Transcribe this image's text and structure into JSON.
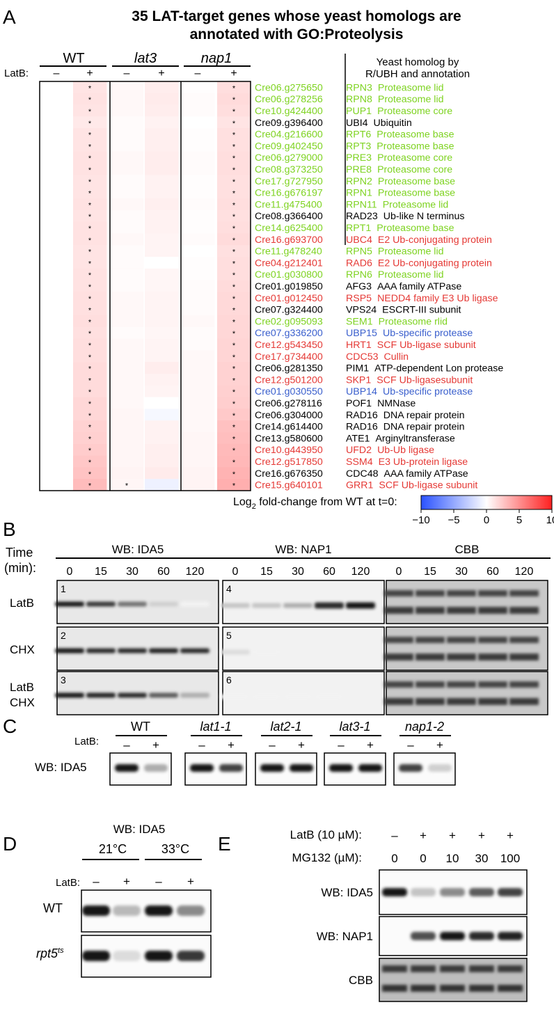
{
  "panelA": {
    "letter": "A",
    "title_line1": "35 LAT-target genes whose yeast homologs are",
    "title_line2": "annotated with GO:Proteolysis",
    "strains": [
      "WT",
      "lat3",
      "nap1"
    ],
    "latb_label": "LatB:",
    "minus": "–",
    "plus": "+",
    "legend_header_line1": "Yeast homolog by",
    "legend_header_line2": "R/UBH and annotation",
    "colors": {
      "proteasome": "#7ed321",
      "ubiquitin_ligase": "#e53935",
      "protease": "#3a5fcd",
      "other": "#000000"
    },
    "genes": [
      {
        "id": "Cre06.g275650",
        "homolog": "RPN3",
        "annotation": "Proteasome lid",
        "color": "#7ed321",
        "vals": [
          0,
          1.2,
          0.3,
          0.8,
          0.1,
          1.5
        ]
      },
      {
        "id": "Cre06.g278256",
        "homolog": "RPN8",
        "annotation": "Proteasome lid",
        "color": "#7ed321",
        "vals": [
          0,
          1.3,
          0.3,
          0.9,
          0.2,
          1.6
        ]
      },
      {
        "id": "Cre10.g424400",
        "homolog": "PUP1",
        "annotation": "Proteasome core",
        "color": "#7ed321",
        "vals": [
          0,
          1.2,
          0.3,
          0.8,
          0.2,
          1.5
        ]
      },
      {
        "id": "Cre09.g396400",
        "homolog": "UBI4",
        "annotation": "Ubiquitin",
        "color": "#000000",
        "vals": [
          0,
          1.0,
          0.2,
          0.6,
          0.0,
          1.2
        ]
      },
      {
        "id": "Cre04.g216600",
        "homolog": "RPT6",
        "annotation": "Proteasome base",
        "color": "#7ed321",
        "vals": [
          0,
          1.2,
          0.2,
          0.7,
          0.1,
          1.4
        ]
      },
      {
        "id": "Cre09.g402450",
        "homolog": "RPT3",
        "annotation": "Proteasome base",
        "color": "#7ed321",
        "vals": [
          0,
          1.2,
          0.2,
          0.7,
          0.1,
          1.4
        ]
      },
      {
        "id": "Cre06.g279000",
        "homolog": "PRE3",
        "annotation": "Proteasome core",
        "color": "#7ed321",
        "vals": [
          0,
          1.3,
          0.3,
          0.8,
          0.2,
          1.5
        ]
      },
      {
        "id": "Cre08.g373250",
        "homolog": "PRE8",
        "annotation": "Proteasome core",
        "color": "#7ed321",
        "vals": [
          0,
          1.3,
          0.3,
          0.8,
          0.2,
          1.5
        ]
      },
      {
        "id": "Cre17.g727950",
        "homolog": "RPN2",
        "annotation": "Proteasome base",
        "color": "#7ed321",
        "vals": [
          0,
          1.2,
          0.2,
          0.6,
          0.1,
          1.4
        ]
      },
      {
        "id": "Cre16.g676197",
        "homolog": "RPN1",
        "annotation": "Proteasome base",
        "color": "#7ed321",
        "vals": [
          0,
          1.2,
          0.2,
          0.6,
          0.1,
          1.4
        ]
      },
      {
        "id": "Cre11.g475400",
        "homolog": "RPN11",
        "annotation": "Proteasome lid",
        "color": "#7ed321",
        "vals": [
          0,
          1.3,
          0.3,
          0.7,
          0.2,
          1.5
        ]
      },
      {
        "id": "Cre08.g366400",
        "homolog": "RAD23",
        "annotation": "Ub-like N terminus",
        "color": "#000000",
        "vals": [
          0,
          1.2,
          0.2,
          0.6,
          0.1,
          1.4
        ]
      },
      {
        "id": "Cre14.g625400",
        "homolog": "RPT1",
        "annotation": "Proteasome base",
        "color": "#7ed321",
        "vals": [
          0,
          1.3,
          0.2,
          0.6,
          0.1,
          1.5
        ]
      },
      {
        "id": "Cre16.g693700",
        "homolog": "UBC4",
        "annotation": "E2 Ub-conjugating protein",
        "color": "#e53935",
        "vals": [
          0,
          1.3,
          0.3,
          0.5,
          0.2,
          1.6
        ]
      },
      {
        "id": "Cre11.g478240",
        "homolog": "RPN5",
        "annotation": "Proteasome lid",
        "color": "#7ed321",
        "vals": [
          0,
          1.2,
          0.2,
          0.5,
          0.0,
          1.4
        ]
      },
      {
        "id": "Cre04.g212401",
        "homolog": "RAD6",
        "annotation": "E2 Ub-conjugating protein",
        "color": "#e53935",
        "vals": [
          0,
          1.2,
          0.2,
          0.0,
          0.1,
          1.5
        ]
      },
      {
        "id": "Cre01.g030800",
        "homolog": "RPN6",
        "annotation": "Proteasome lid",
        "color": "#7ed321",
        "vals": [
          0,
          1.3,
          0.2,
          0.4,
          0.1,
          1.5
        ]
      },
      {
        "id": "Cre01.g019850",
        "homolog": "AFG3",
        "annotation": "AAA family ATPase",
        "color": "#000000",
        "vals": [
          0,
          1.3,
          0.2,
          0.4,
          0.2,
          1.6
        ]
      },
      {
        "id": "Cre01.g012450",
        "homolog": "RSP5",
        "annotation": "NEDD4 family E3 Ub ligase",
        "color": "#e53935",
        "vals": [
          0,
          1.4,
          0.3,
          0.5,
          0.2,
          1.7
        ]
      },
      {
        "id": "Cre07.g324400",
        "homolog": "VPS24",
        "annotation": "ESCRT-III subunit",
        "color": "#000000",
        "vals": [
          0,
          1.4,
          0.3,
          0.5,
          0.2,
          1.7
        ]
      },
      {
        "id": "Cre02.g095093",
        "homolog": "SEM1",
        "annotation": "Proteasome rlid",
        "color": "#7ed321",
        "vals": [
          0,
          1.5,
          0.3,
          0.5,
          0.3,
          1.8
        ]
      },
      {
        "id": "Cre07.g336200",
        "homolog": "UBP15",
        "annotation": "Ub-specific protease",
        "color": "#3a5fcd",
        "vals": [
          0,
          1.4,
          0.2,
          0.4,
          0.2,
          1.8
        ]
      },
      {
        "id": "Cre12.g543450",
        "homolog": "HRT1",
        "annotation": "SCF Ub-ligase subunit",
        "color": "#e53935",
        "vals": [
          0,
          1.5,
          0.3,
          0.5,
          0.2,
          1.9
        ]
      },
      {
        "id": "Cre17.g734400",
        "homolog": "CDC53",
        "annotation": "Cullin",
        "color": "#e53935",
        "vals": [
          0,
          1.5,
          0.3,
          0.5,
          0.3,
          1.9
        ]
      },
      {
        "id": "Cre06.g281350",
        "homolog": "PIM1",
        "annotation": "ATP-dependent Lon protease",
        "color": "#000000",
        "vals": [
          0,
          1.6,
          0.3,
          0.8,
          0.3,
          2.0
        ]
      },
      {
        "id": "Cre12.g501200",
        "homolog": "SKP1",
        "annotation": "SCF Ub-ligasesubunit",
        "color": "#e53935",
        "vals": [
          0,
          1.6,
          0.3,
          0.6,
          0.3,
          2.0
        ]
      },
      {
        "id": "Cre01.g030550",
        "homolog": "UBP14",
        "annotation": "Ub-specific protease",
        "color": "#3a5fcd",
        "vals": [
          0,
          1.6,
          0.3,
          0.5,
          0.3,
          2.1
        ]
      },
      {
        "id": "Cre06.g278116",
        "homolog": "POF1",
        "annotation": "NMNase",
        "color": "#000000",
        "vals": [
          0,
          1.8,
          0.3,
          0.0,
          0.3,
          2.2
        ]
      },
      {
        "id": "Cre06.g304000",
        "homolog": "RAD16",
        "annotation": "DNA repair protein",
        "color": "#000000",
        "vals": [
          0,
          1.8,
          0.4,
          -0.4,
          0.3,
          2.4
        ]
      },
      {
        "id": "Cre14.g614400",
        "homolog": "RAD16",
        "annotation": "DNA repair protein",
        "color": "#000000",
        "vals": [
          0,
          2.0,
          0.4,
          0.6,
          0.3,
          2.8
        ]
      },
      {
        "id": "Cre13.g580600",
        "homolog": "ATE1",
        "annotation": "Arginyltransferase",
        "color": "#000000",
        "vals": [
          0,
          2.1,
          0.4,
          0.6,
          0.4,
          2.9
        ]
      },
      {
        "id": "Cre10.g443950",
        "homolog": "UFD2",
        "annotation": "Ub-Ub ligase",
        "color": "#e53935",
        "vals": [
          0,
          2.3,
          0.4,
          0.7,
          0.4,
          3.1
        ]
      },
      {
        "id": "Cre12.g517850",
        "homolog": "SSM4",
        "annotation": "E3 Ub-protein ligase",
        "color": "#e53935",
        "vals": [
          0,
          2.5,
          0.4,
          0.7,
          0.4,
          3.2
        ]
      },
      {
        "id": "Cre16.g676350",
        "homolog": "CDC48",
        "annotation": "AAA family ATPase",
        "color": "#000000",
        "vals": [
          0,
          2.7,
          0.5,
          0.9,
          0.5,
          3.4
        ]
      },
      {
        "id": "Cre15.g640101",
        "homolog": "GRR1",
        "annotation": "SCF Ub-ligase subunit",
        "color": "#e53935",
        "vals": [
          0,
          3.0,
          0.4,
          -0.8,
          0.5,
          3.6
        ]
      }
    ],
    "asterisk": "*",
    "colorbar": {
      "label_main": "Log",
      "label_sub": "2",
      "label_rest": " fold-change from WT at t=0:",
      "ticks": [
        "−10",
        "−5",
        "0",
        "5",
        "10"
      ],
      "min": -10,
      "max": 10
    }
  },
  "panelB": {
    "letter": "B",
    "time_label_line1": "Time",
    "time_label_line2": "(min):",
    "groups": [
      "WB: IDA5",
      "WB: NAP1",
      "CBB"
    ],
    "timepoints": [
      "0",
      "15",
      "30",
      "60",
      "120"
    ],
    "rows": [
      {
        "label_line1": "LatB",
        "label_line2": ""
      },
      {
        "label_line1": "CHX",
        "label_line2": ""
      },
      {
        "label_line1": "LatB",
        "label_line2": "CHX"
      }
    ],
    "blot_numbers": [
      "1",
      "2",
      "3",
      "4",
      "5",
      "6"
    ],
    "ida5_intensity": [
      [
        1.0,
        0.85,
        0.6,
        0.2,
        0.05
      ],
      [
        1.0,
        0.9,
        0.9,
        0.95,
        0.9
      ],
      [
        1.0,
        0.95,
        0.9,
        0.7,
        0.35
      ]
    ],
    "nap1_intensity": [
      [
        0.25,
        0.25,
        0.35,
        0.9,
        1.0
      ],
      [
        0.15,
        0.05,
        0.0,
        0.0,
        0.0
      ],
      [
        0.05,
        0.05,
        0.05,
        0.05,
        0.0
      ]
    ]
  },
  "panelC": {
    "letter": "C",
    "latb_label": "LatB:",
    "wb_label": "WB: IDA5",
    "strains": [
      "WT",
      "lat1-1",
      "lat2-1",
      "lat3-1",
      "nap1-2"
    ],
    "strain_italic": [
      false,
      true,
      true,
      true,
      true
    ],
    "minus": "–",
    "plus": "+",
    "intensity": [
      [
        1.0,
        0.35
      ],
      [
        1.0,
        0.8
      ],
      [
        1.0,
        1.0
      ],
      [
        1.0,
        1.0
      ],
      [
        0.8,
        0.2
      ]
    ]
  },
  "panelD": {
    "letter": "D",
    "wb_label": "WB: IDA5",
    "temps": [
      "21°C",
      "33°C"
    ],
    "latb_label": "LatB:",
    "minus": "–",
    "plus": "+",
    "row_wt": "WT",
    "row_mut": "rpt5",
    "row_mut_sup": "ts",
    "intensity": [
      [
        1.0,
        0.3,
        1.0,
        0.5
      ],
      [
        1.0,
        0.15,
        1.0,
        0.85
      ]
    ]
  },
  "panelE": {
    "letter": "E",
    "latb_label": "LatB (10 µM):",
    "latb_values": [
      "–",
      "+",
      "+",
      "+",
      "+"
    ],
    "mg132_label": "MG132 (µM):",
    "mg132_values": [
      "0",
      "0",
      "10",
      "30",
      "100"
    ],
    "rows": [
      "WB: IDA5",
      "WB: NAP1",
      "CBB"
    ],
    "ida5_intensity": [
      1.0,
      0.25,
      0.5,
      0.7,
      0.8
    ],
    "nap1_intensity": [
      0.0,
      0.75,
      1.0,
      0.9,
      0.95
    ]
  }
}
